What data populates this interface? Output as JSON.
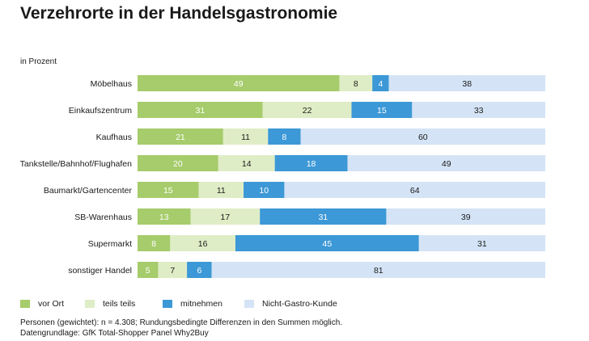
{
  "chart_data": {
    "type": "bar",
    "orientation": "horizontal",
    "stacked": true,
    "title": "Verzehrorte in der Handelsgastronomie",
    "unit_label": "in Prozent",
    "categories": [
      "Möbelhaus",
      "Einkaufszentrum",
      "Kaufhaus",
      "Tankstelle/Bahnhof/Flughafen",
      "Baumarkt/Gartencenter",
      "SB-Warenhaus",
      "Supermarkt",
      "sonstiger Handel"
    ],
    "series": [
      {
        "name": "vor Ort",
        "color": "#a6cc6b",
        "label_color": "#ffffff",
        "values": [
          49,
          31,
          21,
          20,
          15,
          13,
          8,
          5
        ]
      },
      {
        "name": "teils teils",
        "color": "#dfedc6",
        "label_color": "#1a1a1a",
        "values": [
          8,
          22,
          11,
          14,
          11,
          17,
          16,
          7
        ]
      },
      {
        "name": "mitnehmen",
        "color": "#3c98d6",
        "label_color": "#ffffff",
        "values": [
          4,
          15,
          8,
          18,
          10,
          31,
          45,
          6
        ]
      },
      {
        "name": "Nicht-Gastro-Kunde",
        "color": "#d4e4f6",
        "label_color": "#1a1a1a",
        "values": [
          38,
          33,
          60,
          49,
          64,
          39,
          31,
          81
        ]
      }
    ],
    "legend_position": "bottom-left",
    "grid": false
  },
  "notes": [
    "Personen (gewichtet): n = 4.308; Rundungsbedingte Differenzen in den Summen möglich.",
    "Datengrundlage: GfK Total-Shopper Panel Why2Buy"
  ]
}
